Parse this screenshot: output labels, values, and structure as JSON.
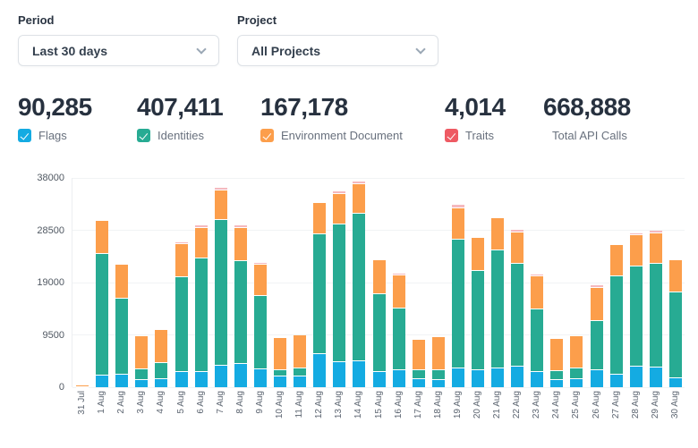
{
  "filters": {
    "period": {
      "label": "Period",
      "value": "Last 30 days"
    },
    "project": {
      "label": "Project",
      "value": "All Projects"
    }
  },
  "stats": [
    {
      "value": "90,285",
      "label": "Flags",
      "checkbox": true,
      "checked": true,
      "color": "#14abe2"
    },
    {
      "value": "407,411",
      "label": "Identities",
      "checkbox": true,
      "checked": true,
      "color": "#27ab93"
    },
    {
      "value": "167,178",
      "label": "Environment Document",
      "checkbox": true,
      "checked": true,
      "color": "#fc9e4b"
    },
    {
      "value": "4,014",
      "label": "Traits",
      "checkbox": true,
      "checked": true,
      "color": "#ee5a63"
    },
    {
      "value": "668,888",
      "label": "Total API Calls",
      "checkbox": false
    }
  ],
  "chart_data": {
    "type": "bar",
    "stacked": true,
    "title": "",
    "xlabel": "",
    "ylabel": "",
    "ylim": [
      0,
      38000
    ],
    "yticks": [
      0,
      9500,
      19000,
      28500,
      38000
    ],
    "grid": true,
    "legend_position": "top-as-stat-checkboxes",
    "categories": [
      "31 Jul",
      "1 Aug",
      "2 Aug",
      "3 Aug",
      "4 Aug",
      "5 Aug",
      "6 Aug",
      "7 Aug",
      "8 Aug",
      "9 Aug",
      "10 Aug",
      "11 Aug",
      "12 Aug",
      "13 Aug",
      "14 Aug",
      "15 Aug",
      "16 Aug",
      "17 Aug",
      "18 Aug",
      "19 Aug",
      "20 Aug",
      "21 Aug",
      "22 Aug",
      "23 Aug",
      "24 Aug",
      "25 Aug",
      "26 Aug",
      "27 Aug",
      "28 Aug",
      "29 Aug",
      "30 Aug"
    ],
    "series": [
      {
        "name": "Flags",
        "color": "#14abe2",
        "values": [
          30,
          2200,
          2500,
          1400,
          1700,
          3000,
          2900,
          4000,
          4400,
          3450,
          2100,
          2100,
          6150,
          4650,
          4950,
          3000,
          3200,
          1700,
          1400,
          3550,
          3300,
          3550,
          3950,
          2900,
          1400,
          1550,
          3200,
          2400,
          3900,
          3700,
          1850
        ]
      },
      {
        "name": "Identities",
        "color": "#27ab93",
        "values": [
          200,
          22100,
          13800,
          2050,
          2850,
          17100,
          20700,
          26500,
          18650,
          13250,
          1100,
          1450,
          21850,
          25150,
          26650,
          14050,
          11200,
          1500,
          1800,
          23450,
          17900,
          21400,
          18550,
          11400,
          1650,
          2000,
          8950,
          17850,
          18250,
          18800,
          15600
        ]
      },
      {
        "name": "Environment Document",
        "color": "#fc9e4b",
        "values": [
          30,
          5850,
          5950,
          5800,
          5800,
          6100,
          5500,
          5400,
          5950,
          5800,
          5800,
          5850,
          5450,
          5400,
          5400,
          5950,
          6050,
          5400,
          5950,
          5700,
          5900,
          5700,
          5800,
          5950,
          5700,
          5750,
          6050,
          5600,
          5600,
          5600,
          5600
        ]
      },
      {
        "name": "Traits",
        "color": "#ee5a63",
        "bar_color": "#f5b9be",
        "values": [
          0,
          0,
          0,
          0,
          0,
          150,
          300,
          370,
          330,
          150,
          0,
          0,
          0,
          350,
          300,
          0,
          250,
          0,
          0,
          380,
          0,
          0,
          250,
          200,
          0,
          0,
          320,
          0,
          250,
          280,
          0
        ]
      }
    ]
  }
}
